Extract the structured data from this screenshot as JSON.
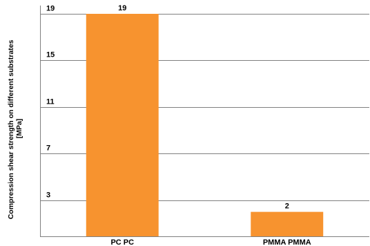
{
  "chart_data": {
    "type": "bar",
    "title": "",
    "xlabel": "",
    "ylabel_lines": [
      "Compression shear strength on different substrates",
      "[MPa]"
    ],
    "categories": [
      "PC PC",
      "PMMA PMMA"
    ],
    "values": [
      19,
      2
    ],
    "data_labels": [
      "19",
      "2"
    ],
    "yticks": [
      3,
      7,
      11,
      15,
      19
    ],
    "ytick_labels": [
      "3",
      "7",
      "11",
      "15",
      "19"
    ],
    "ylim": [
      -0.1,
      19
    ],
    "grid": true,
    "legend": "none",
    "colors": {
      "bar": "#F7932F",
      "grid": "#7f7f7f",
      "axis": "#7f7f7f"
    }
  }
}
